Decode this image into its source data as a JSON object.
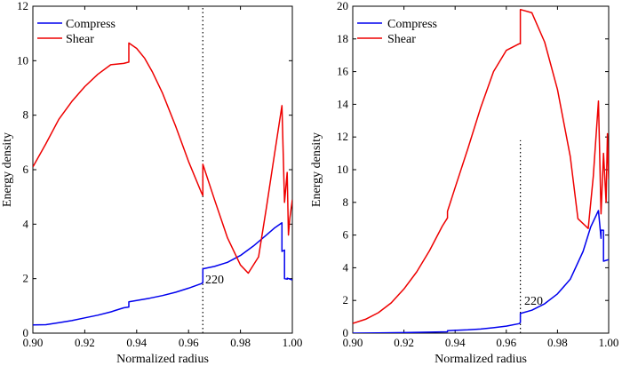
{
  "chart_data": [
    {
      "type": "line",
      "xlabel": "Normalized radius",
      "ylabel": "Energy density",
      "xlim": [
        0.9,
        1.0
      ],
      "ylim": [
        0,
        12
      ],
      "xticks": [
        "0.90",
        "0.92",
        "0.94",
        "0.96",
        "0.98",
        "1.00"
      ],
      "yticks": [
        "0",
        "2",
        "4",
        "6",
        "8",
        "10",
        "12"
      ],
      "legend": [
        "Compress",
        "Shear"
      ],
      "legend_position": "top-left",
      "annotation": {
        "text": "220",
        "x": 0.9655
      },
      "vline": {
        "x": 0.9655,
        "from": 0,
        "to": 12
      },
      "colors": {
        "Compress": "#0000ee",
        "Shear": "#ee0000"
      },
      "series": [
        {
          "name": "Compress",
          "x": [
            0.9,
            0.905,
            0.91,
            0.915,
            0.92,
            0.925,
            0.93,
            0.935,
            0.937,
            0.937,
            0.94,
            0.945,
            0.95,
            0.955,
            0.96,
            0.965,
            0.9655,
            0.9655,
            0.97,
            0.975,
            0.98,
            0.985,
            0.99,
            0.993,
            0.996,
            0.996,
            0.997,
            0.997,
            0.998,
            0.998,
            1.0
          ],
          "values": [
            0.3,
            0.31,
            0.38,
            0.46,
            0.56,
            0.66,
            0.78,
            0.93,
            0.96,
            1.15,
            1.2,
            1.28,
            1.38,
            1.5,
            1.65,
            1.82,
            1.86,
            2.36,
            2.45,
            2.6,
            2.85,
            3.2,
            3.6,
            3.85,
            4.05,
            3.0,
            3.05,
            2.0,
            1.98,
            2.02,
            1.95
          ]
        },
        {
          "name": "Shear",
          "x": [
            0.9,
            0.905,
            0.91,
            0.915,
            0.92,
            0.925,
            0.93,
            0.935,
            0.937,
            0.937,
            0.94,
            0.943,
            0.946,
            0.95,
            0.955,
            0.96,
            0.965,
            0.9655,
            0.9655,
            0.97,
            0.975,
            0.98,
            0.983,
            0.987,
            0.99,
            0.993,
            0.996,
            0.997,
            0.998,
            0.9985,
            0.999,
            1.0
          ],
          "values": [
            6.1,
            6.95,
            7.85,
            8.5,
            9.05,
            9.5,
            9.85,
            9.9,
            9.95,
            10.65,
            10.45,
            10.1,
            9.6,
            8.8,
            7.6,
            6.3,
            5.15,
            5.05,
            6.2,
            4.9,
            3.5,
            2.5,
            2.2,
            2.8,
            4.6,
            6.5,
            8.35,
            4.8,
            5.9,
            3.6,
            4.2,
            4.9
          ]
        }
      ]
    },
    {
      "type": "line",
      "xlabel": "Normalized radius",
      "ylabel": "Energy density",
      "xlim": [
        0.9,
        1.0
      ],
      "ylim": [
        0,
        20
      ],
      "xticks": [
        "0.90",
        "0.92",
        "0.94",
        "0.96",
        "0.98",
        "1.00"
      ],
      "yticks": [
        "0",
        "2",
        "4",
        "6",
        "8",
        "10",
        "12",
        "14",
        "16",
        "18",
        "20"
      ],
      "legend": [
        "Compress",
        "Shear"
      ],
      "legend_position": "top-left",
      "annotation": {
        "text": "220",
        "x": 0.9655
      },
      "vline": {
        "x": 0.9655,
        "from": 0,
        "to": 11.8
      },
      "colors": {
        "Compress": "#0000ee",
        "Shear": "#ee0000"
      },
      "series": [
        {
          "name": "Compress",
          "x": [
            0.9,
            0.91,
            0.92,
            0.93,
            0.937,
            0.937,
            0.945,
            0.95,
            0.955,
            0.96,
            0.965,
            0.9655,
            0.9655,
            0.97,
            0.975,
            0.98,
            0.985,
            0.99,
            0.993,
            0.996,
            0.997,
            0.997,
            0.998,
            0.998,
            1.0
          ],
          "values": [
            0.0,
            0.01,
            0.03,
            0.06,
            0.08,
            0.15,
            0.2,
            0.25,
            0.33,
            0.43,
            0.58,
            0.65,
            1.2,
            1.4,
            1.8,
            2.4,
            3.3,
            5.0,
            6.5,
            7.5,
            5.8,
            6.3,
            6.3,
            4.4,
            4.5
          ]
        },
        {
          "name": "Shear",
          "x": [
            0.9,
            0.905,
            0.91,
            0.915,
            0.92,
            0.925,
            0.93,
            0.935,
            0.937,
            0.937,
            0.94,
            0.945,
            0.95,
            0.955,
            0.96,
            0.965,
            0.9655,
            0.9655,
            0.97,
            0.975,
            0.98,
            0.985,
            0.988,
            0.992,
            0.994,
            0.996,
            0.997,
            0.998,
            0.999,
            0.9995,
            1.0
          ],
          "values": [
            0.6,
            0.85,
            1.25,
            1.85,
            2.7,
            3.75,
            5.05,
            6.55,
            7.05,
            7.45,
            8.9,
            11.3,
            13.8,
            16.0,
            17.3,
            17.7,
            17.7,
            19.8,
            19.6,
            17.8,
            14.9,
            10.8,
            7.0,
            6.4,
            9.6,
            14.2,
            7.3,
            11.0,
            8.0,
            12.2,
            9.4
          ]
        }
      ]
    }
  ]
}
